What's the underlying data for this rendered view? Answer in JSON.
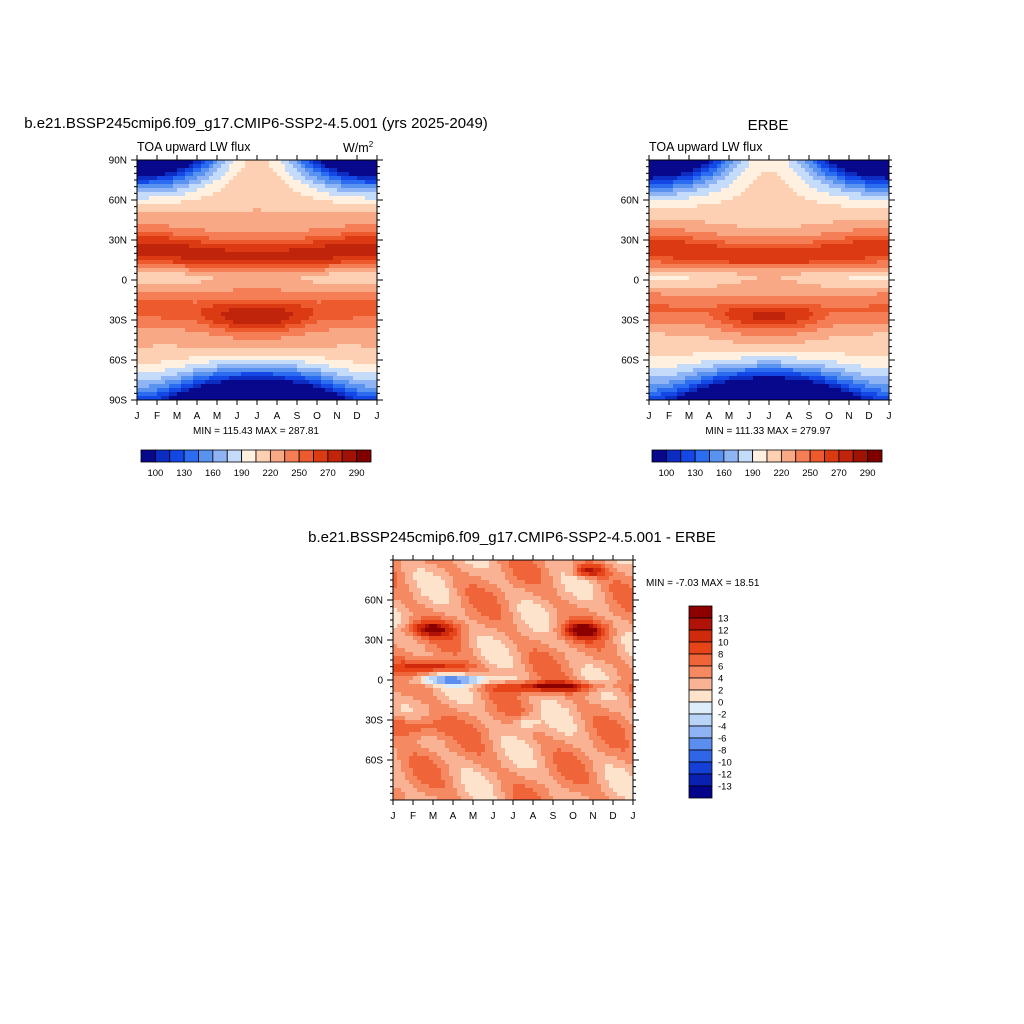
{
  "panels": [
    {
      "id": "model",
      "title": "b.e21.BSSP245cmip6.f09_g17.CMIP6-SSP2-4.5.001 (yrs 2025-2049)",
      "subtitle_left": "TOA upward LW flux",
      "units_base": "W/m",
      "units_sup": "2",
      "stats": "MIN = 115.43 MAX = 287.81",
      "x_ticks": [
        "J",
        "F",
        "M",
        "A",
        "M",
        "J",
        "J",
        "A",
        "S",
        "O",
        "N",
        "D",
        "J"
      ],
      "y_ticks": [
        "90N",
        "60N",
        "30N",
        "0",
        "30S",
        "60S",
        "90S"
      ]
    },
    {
      "id": "obs",
      "title": "ERBE",
      "subtitle_left": "TOA upward LW flux",
      "units_base": "",
      "units_sup": "",
      "stats": "MIN = 111.33 MAX = 279.97",
      "x_ticks": [
        "J",
        "F",
        "M",
        "A",
        "M",
        "J",
        "J",
        "A",
        "S",
        "O",
        "N",
        "D",
        "J"
      ],
      "y_ticks": [
        "60N",
        "30N",
        "0",
        "30S",
        "60S"
      ]
    },
    {
      "id": "diff",
      "title": "b.e21.BSSP245cmip6.f09_g17.CMIP6-SSP2-4.5.001 - ERBE",
      "stats": "MIN =  -7.03 MAX =  18.51",
      "x_ticks": [
        "J",
        "F",
        "M",
        "A",
        "M",
        "J",
        "J",
        "A",
        "S",
        "O",
        "N",
        "D",
        "J"
      ],
      "y_ticks": [
        "60N",
        "30N",
        "0",
        "30S",
        "60S"
      ]
    }
  ],
  "flux_colorbar": {
    "labels": [
      "100",
      "130",
      "160",
      "190",
      "220",
      "250",
      "270",
      "290"
    ],
    "colors": [
      "#08088c",
      "#0c2cc2",
      "#1448e6",
      "#2b6cf0",
      "#5a92f0",
      "#8fb4f5",
      "#c4dcfa",
      "#fff0e0",
      "#fdd0b4",
      "#f9a886",
      "#f57e56",
      "#ec5a2e",
      "#dc3a12",
      "#c0240a",
      "#a01204",
      "#800000"
    ]
  },
  "diff_colorbar": {
    "labels": [
      "13",
      "12",
      "10",
      "8",
      "6",
      "4",
      "2",
      "0",
      "-2",
      "-4",
      "-6",
      "-8",
      "-10",
      "-12",
      "-13"
    ],
    "colors": [
      "#8c0000",
      "#b01208",
      "#d02a0c",
      "#e8441a",
      "#f0643a",
      "#f58a62",
      "#f9b394",
      "#fde2cc",
      "#ddeefa",
      "#b8d4f7",
      "#8fb4f5",
      "#5c8ef0",
      "#2f66e8",
      "#1440d6",
      "#0a20b0",
      "#04048a"
    ]
  },
  "chart_data": [
    {
      "type": "heatmap",
      "title": "b.e21.BSSP245cmip6.f09_g17.CMIP6-SSP2-4.5.001 (yrs 2025-2049)",
      "variable": "TOA upward LW flux",
      "units": "W/m2",
      "x_categories": [
        "J",
        "F",
        "M",
        "A",
        "M",
        "J",
        "J",
        "A",
        "S",
        "O",
        "N",
        "D",
        "J"
      ],
      "y_range": [
        -90,
        90
      ],
      "min": 115.43,
      "max": 287.81,
      "contour_levels": [
        100,
        115,
        130,
        145,
        160,
        175,
        190,
        205,
        220,
        235,
        250,
        260,
        270,
        280,
        290
      ]
    },
    {
      "type": "heatmap",
      "title": "ERBE",
      "variable": "TOA upward LW flux",
      "x_categories": [
        "J",
        "F",
        "M",
        "A",
        "M",
        "J",
        "J",
        "A",
        "S",
        "O",
        "N",
        "D",
        "J"
      ],
      "y_range": [
        -90,
        90
      ],
      "min": 111.33,
      "max": 279.97,
      "contour_levels": [
        100,
        115,
        130,
        145,
        160,
        175,
        190,
        205,
        220,
        235,
        250,
        260,
        270,
        280,
        290
      ]
    },
    {
      "type": "heatmap",
      "title": "b.e21.BSSP245cmip6.f09_g17.CMIP6-SSP2-4.5.001 - ERBE",
      "x_categories": [
        "J",
        "F",
        "M",
        "A",
        "M",
        "J",
        "J",
        "A",
        "S",
        "O",
        "N",
        "D",
        "J"
      ],
      "y_range": [
        -90,
        90
      ],
      "min": -7.03,
      "max": 18.51,
      "contour_levels": [
        -13,
        -12,
        -10,
        -8,
        -6,
        -4,
        -2,
        0,
        2,
        4,
        6,
        8,
        10,
        12,
        13
      ]
    }
  ]
}
